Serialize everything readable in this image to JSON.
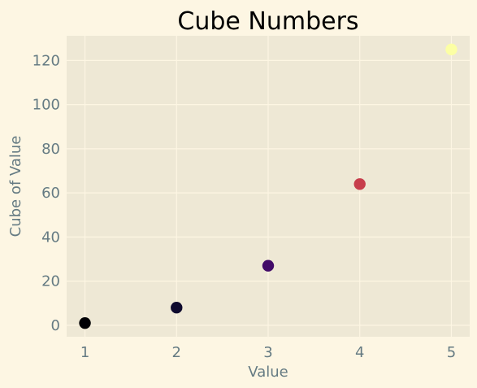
{
  "chart_data": {
    "type": "scatter",
    "title": "Cube Numbers",
    "xlabel": "Value",
    "ylabel": "Cube of Value",
    "x": [
      1,
      2,
      3,
      4,
      5
    ],
    "y": [
      1,
      8,
      27,
      64,
      125
    ],
    "point_colors": [
      "#000004",
      "#0e0a2e",
      "#420a68",
      "#c73e4c",
      "#fcffa4"
    ],
    "x_ticks": [
      "1",
      "2",
      "3",
      "4",
      "5"
    ],
    "y_ticks": [
      "0",
      "20",
      "40",
      "60",
      "80",
      "100",
      "120"
    ],
    "xlim": [
      0.8,
      5.2
    ],
    "ylim": [
      -5.2,
      131.2
    ],
    "grid": true,
    "colors": {
      "figure_background": "#fdf6e3",
      "plot_background": "#eee8d5",
      "grid": "#fdf6e3",
      "text": "#657b83"
    }
  }
}
